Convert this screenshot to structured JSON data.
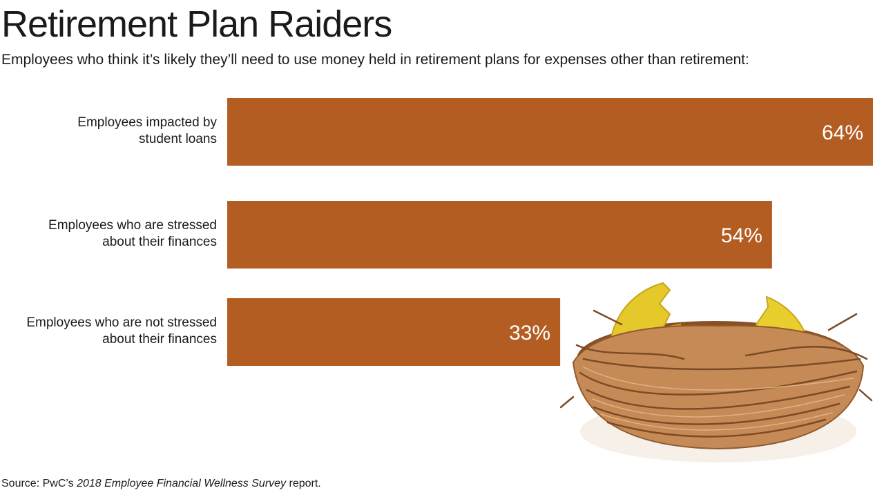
{
  "title": "Retirement Plan Raiders",
  "subtitle": "Employees who think it’s likely they’ll need to use money held in retirement plans for expenses other than retirement:",
  "chart_data": {
    "type": "bar",
    "orientation": "horizontal",
    "categories": [
      [
        "Employees impacted by",
        "student loans"
      ],
      [
        "Employees who are stressed",
        "about their finances"
      ],
      [
        "Employees who are not stressed",
        "about their finances"
      ]
    ],
    "values": [
      64,
      54,
      33
    ],
    "value_labels": [
      "64%",
      "54%",
      "33%"
    ],
    "unit": "%",
    "xlim": [
      0,
      64
    ],
    "bar_color": "#b45d22",
    "label_color": "#ffffff",
    "grid": false,
    "legend": "none"
  },
  "source": {
    "prefix": "Source: PwC’s ",
    "publication": "2018 Employee Financial Wellness Survey",
    "suffix": " report."
  },
  "illustration": {
    "name": "golden-egg-nest-icon",
    "egg_color": "#e5c82a",
    "nest_color": "#a86a3a"
  }
}
